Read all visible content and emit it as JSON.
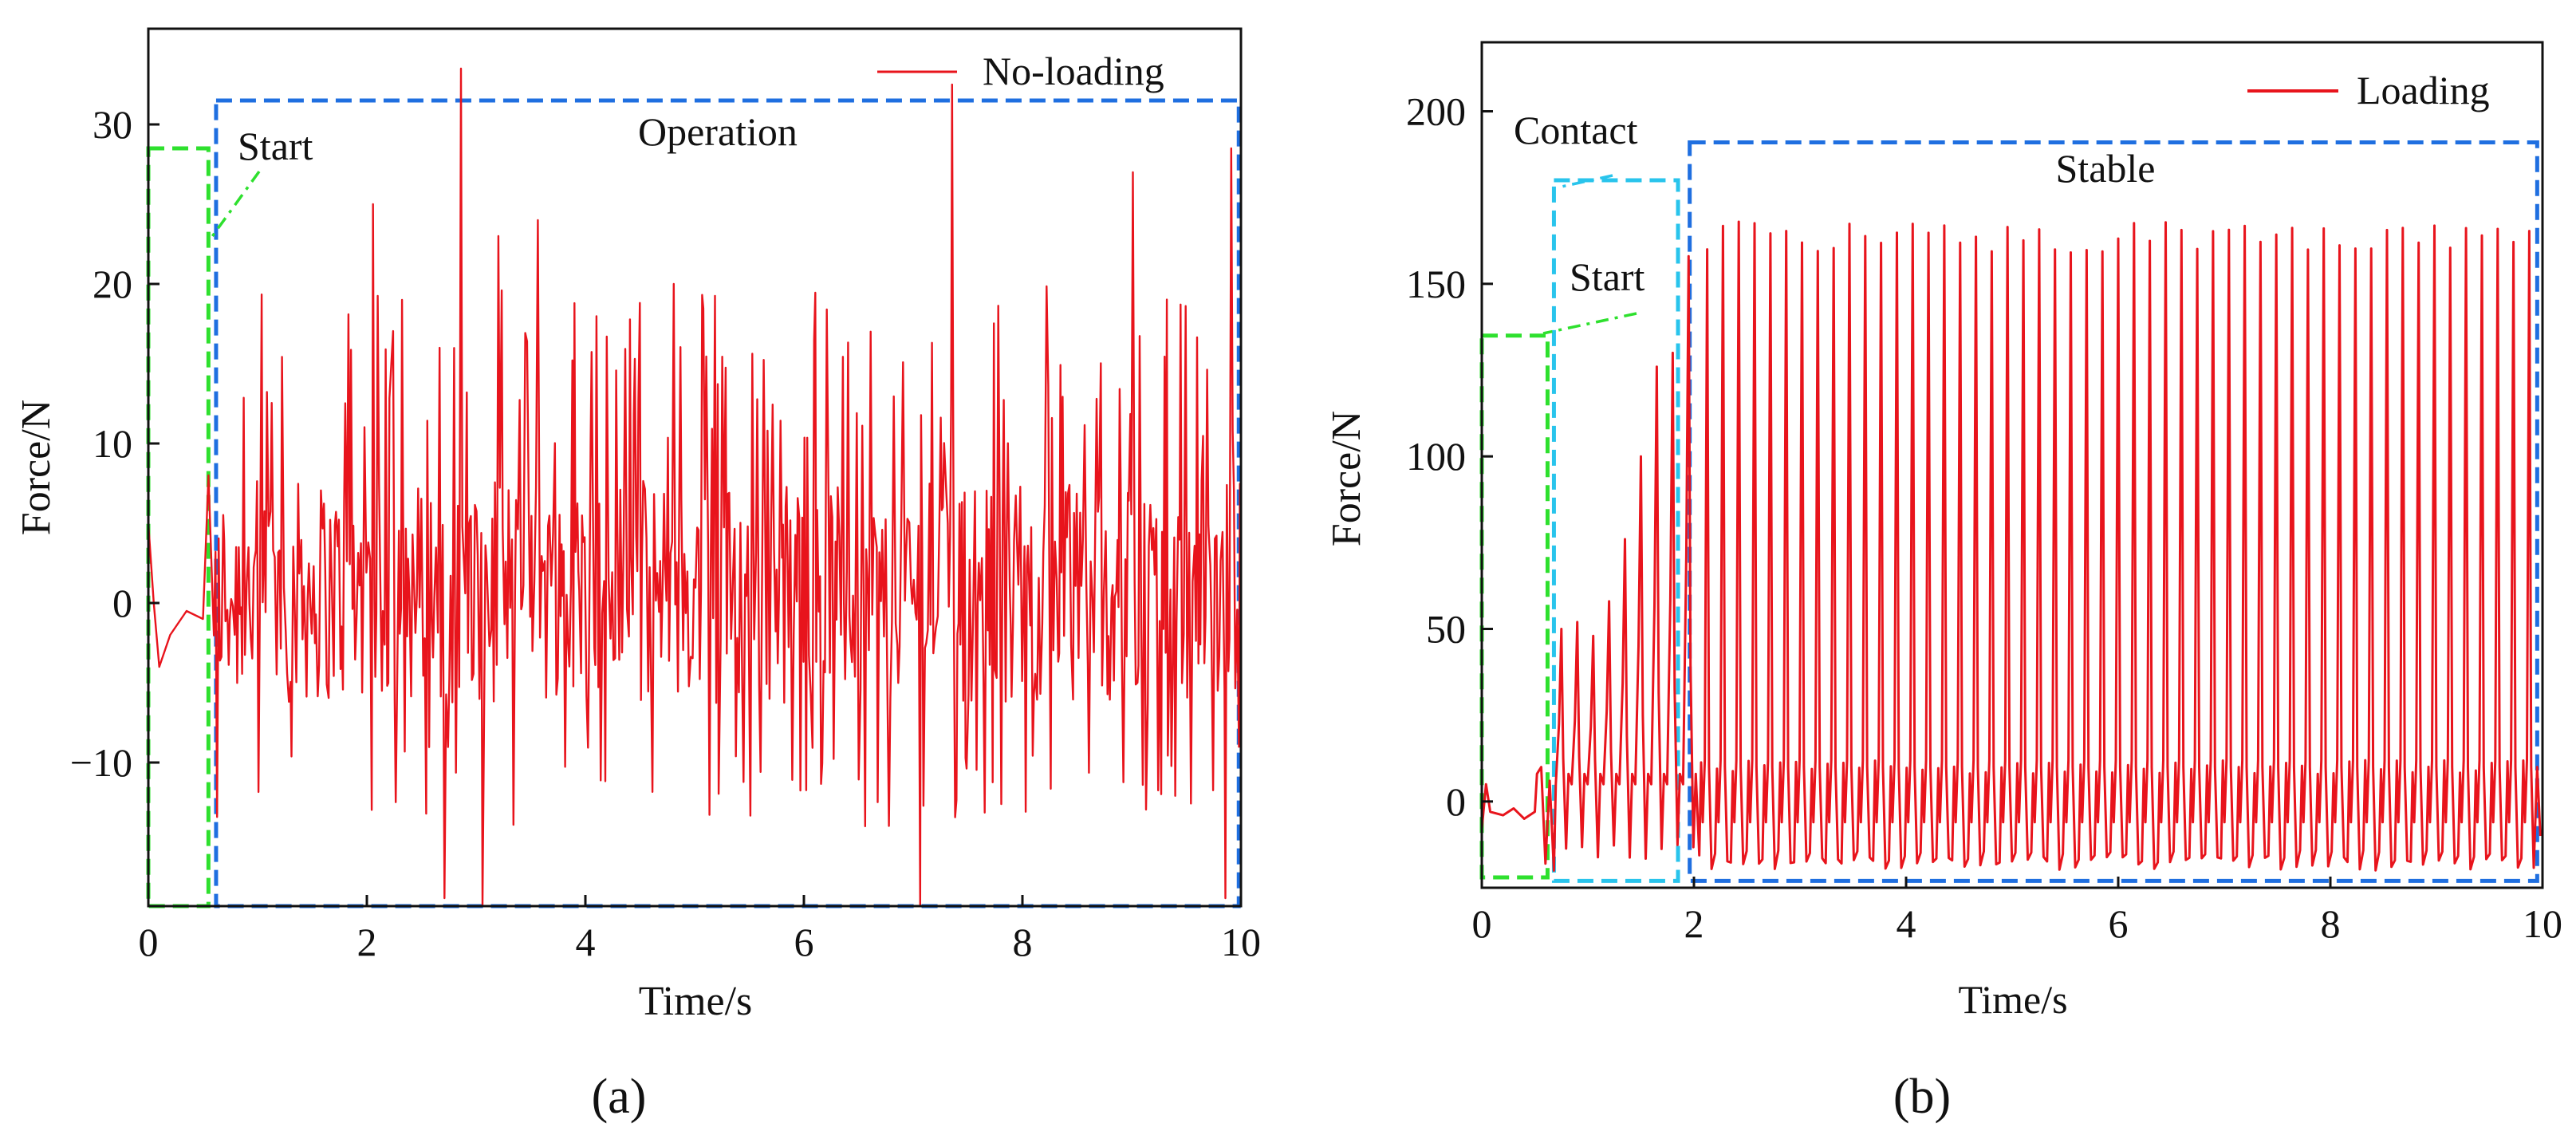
{
  "chart_data": [
    {
      "type": "line",
      "panel_label": "(a)",
      "xlabel": "Time/s",
      "ylabel": "Force/N",
      "xlim": [
        0,
        10
      ],
      "ylim": [
        -19,
        36
      ],
      "x_ticks": [
        0,
        2,
        4,
        6,
        8,
        10
      ],
      "x_tick_labels": [
        "0",
        "2",
        "4",
        "6",
        "8",
        "10"
      ],
      "y_ticks": [
        -10,
        0,
        10,
        20,
        30
      ],
      "y_tick_labels": [
        "−10",
        "0",
        "10",
        "20",
        "30"
      ],
      "legend": {
        "label": "No-loading",
        "placement": "top-right",
        "color": "#e8141c"
      },
      "series": [
        {
          "name": "No-loading",
          "color": "#e8141c",
          "description": "irregular oscillation, mostly between -10 and 15 N with sharp spikes up to about 33 N",
          "start_phase": {
            "x": [
              0.0,
              0.05,
              0.1,
              0.2,
              0.35,
              0.5,
              0.55
            ],
            "y": [
              5,
              0,
              -4,
              -2,
              -0.5,
              -1,
              8
            ]
          },
          "spikes": [
            {
              "x": 2.05,
              "y": 25
            },
            {
              "x": 2.85,
              "y": 33.5
            },
            {
              "x": 3.2,
              "y": 23
            },
            {
              "x": 3.55,
              "y": 24
            },
            {
              "x": 4.8,
              "y": 20
            },
            {
              "x": 7.35,
              "y": 32.5
            },
            {
              "x": 9.0,
              "y": 27
            },
            {
              "x": 9.9,
              "y": 28.5
            },
            {
              "x": 2.7,
              "y": -18.5
            },
            {
              "x": 3.05,
              "y": -19
            },
            {
              "x": 7.05,
              "y": -19
            },
            {
              "x": 9.85,
              "y": -18.5
            }
          ]
        }
      ],
      "annotations": [
        {
          "label": "Start",
          "color": "#2ee02e",
          "x_range": [
            0.0,
            0.55
          ],
          "y_range": [
            -19,
            28.5
          ]
        },
        {
          "label": "Operation",
          "color": "#1f6fe0",
          "x_range": [
            0.62,
            9.98
          ],
          "y_range": [
            -19,
            31.5
          ]
        }
      ]
    },
    {
      "type": "line",
      "panel_label": "(b)",
      "xlabel": "Time/s",
      "ylabel": "Force/N",
      "xlim": [
        0,
        10
      ],
      "ylim": [
        -25,
        220
      ],
      "x_ticks": [
        0,
        2,
        4,
        6,
        8,
        10
      ],
      "x_tick_labels": [
        "0",
        "2",
        "4",
        "6",
        "8",
        "10"
      ],
      "y_ticks": [
        0,
        50,
        100,
        150,
        200
      ],
      "y_tick_labels": [
        "0",
        "50",
        "100",
        "150",
        "200"
      ],
      "legend": {
        "label": "Loading",
        "placement": "top-right",
        "color": "#e8141c"
      },
      "series": [
        {
          "name": "Loading",
          "color": "#e8141c",
          "description": "periodic loading cycles; peaks grow from about 50 N to 160 N during contact, then stable peaks near 165 N and troughs near -18 N",
          "contact_peaks": [
            {
              "x": 0.75,
              "y": 50
            },
            {
              "x": 0.9,
              "y": 52
            },
            {
              "x": 1.05,
              "y": 48
            },
            {
              "x": 1.2,
              "y": 58
            },
            {
              "x": 1.35,
              "y": 76
            },
            {
              "x": 1.5,
              "y": 100
            },
            {
              "x": 1.65,
              "y": 126
            },
            {
              "x": 1.8,
              "y": 130
            },
            {
              "x": 1.95,
              "y": 158
            }
          ],
          "stable_peak": 165,
          "stable_trough": -18,
          "stable_cycles": 53,
          "stable_x_range": [
            2.05,
            9.95
          ]
        }
      ],
      "annotations": [
        {
          "label": "Start",
          "color": "#2ee02e",
          "x_range": [
            0.0,
            0.62
          ],
          "y_range": [
            -22,
            135
          ]
        },
        {
          "label": "Contact",
          "color": "#29c4ec",
          "x_range": [
            0.68,
            1.85
          ],
          "y_range": [
            -23,
            180
          ]
        },
        {
          "label": "Stable",
          "color": "#1f6fe0",
          "x_range": [
            1.96,
            9.95
          ],
          "y_range": [
            -23,
            191
          ]
        }
      ]
    }
  ]
}
